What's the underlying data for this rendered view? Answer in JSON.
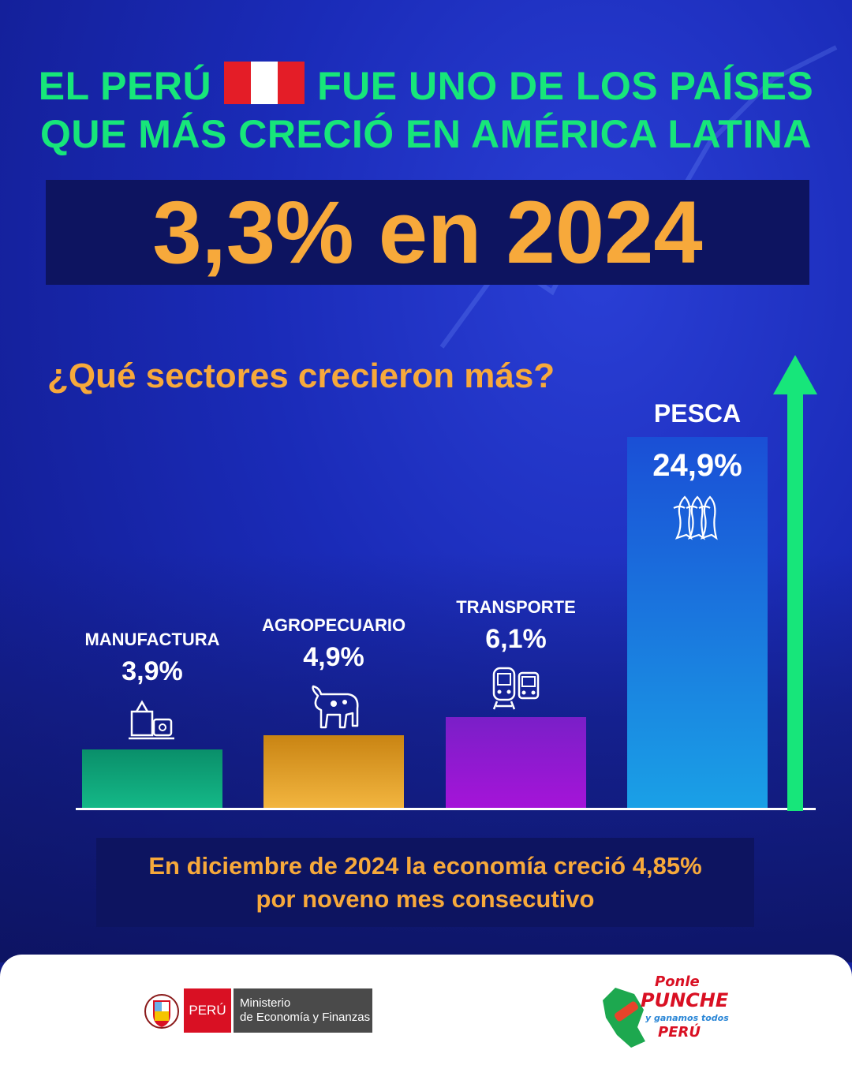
{
  "headline": {
    "line1_left": "EL PERÚ",
    "line1_right": "FUE UNO DE LOS PAÍSES",
    "line2": "QUE MÁS CRECIÓ EN AMÉRICA LATINA"
  },
  "big_stat": "3,3% en 2024",
  "question": "¿Qué sectores crecieron más?",
  "chart_data": {
    "type": "bar",
    "title": "¿Qué sectores crecieron más?",
    "categories": [
      "MANUFACTURA",
      "AGROPECUARIO",
      "TRANSPORTE",
      "PESCA"
    ],
    "values": [
      3.9,
      4.9,
      6.1,
      24.9
    ],
    "value_labels": [
      "3,9%",
      "4,9%",
      "6,1%",
      "24,9%"
    ],
    "icons": [
      "sewing-machine-icon",
      "cow-icon",
      "train-bus-icon",
      "fish-icon"
    ],
    "colors": [
      "#0ea27a",
      "#e7a42e",
      "#9a1fd8",
      "#1f6fe0"
    ],
    "grid": false,
    "legend": "none"
  },
  "footer": {
    "line1": "En diciembre de 2024 la economía creció 4,85%",
    "line2": "por noveno mes consecutivo"
  },
  "logos": {
    "peru": "PERÚ",
    "ministry_line1": "Ministerio",
    "ministry_line2": "de Economía y Finanzas",
    "campaign_line1": "Ponle",
    "campaign_line2": "PUNCHE",
    "campaign_line3": "y ganamos todos",
    "campaign_line4": "PERÚ"
  },
  "colors": {
    "headline": "#17e67a",
    "accent": "#f7a93b",
    "background": "#1a2bb8",
    "box": "#0d1460"
  }
}
